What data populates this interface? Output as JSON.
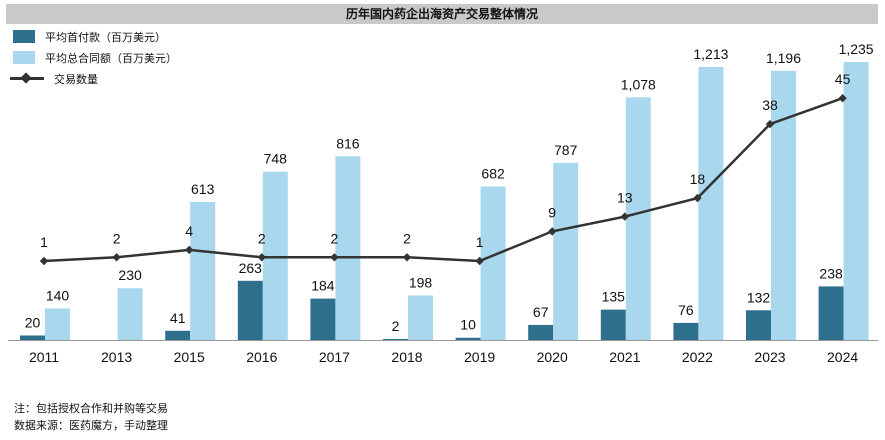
{
  "title": "历年国内药企出海资产交易整体情况",
  "legend": {
    "items": [
      {
        "label": "平均首付款（百万美元）",
        "color": "#2e6f8e",
        "kind": "bar"
      },
      {
        "label": "平均总合同额（百万美元）",
        "color": "#a9d8ee",
        "kind": "bar"
      },
      {
        "label": "交易数量",
        "color": "#333333",
        "kind": "line"
      }
    ]
  },
  "footnote": {
    "note": "注：包括授权合作和并购等交易",
    "source": "数据来源：医药魔方，手动整理"
  },
  "chart_data": {
    "type": "bar",
    "title": "历年国内药企出海资产交易整体情况",
    "categories": [
      "2011",
      "2013",
      "2015",
      "2016",
      "2017",
      "2018",
      "2019",
      "2020",
      "2021",
      "2022",
      "2023",
      "2024"
    ],
    "series": [
      {
        "name": "平均首付款（百万美元）",
        "type": "bar",
        "color": "#2e6f8e",
        "values": [
          20,
          null,
          41,
          263,
          184,
          2,
          10,
          67,
          135,
          76,
          132,
          238
        ],
        "labels": [
          "20",
          "",
          "41",
          "263",
          "184",
          "2",
          "10",
          "67",
          "135",
          "76",
          "132",
          "238"
        ]
      },
      {
        "name": "平均总合同额（百万美元）",
        "type": "bar",
        "color": "#a9d8ee",
        "values": [
          140,
          230,
          613,
          748,
          816,
          198,
          682,
          787,
          1078,
          1213,
          1196,
          1235
        ],
        "labels": [
          "140",
          "230",
          "613",
          "748",
          "816",
          "198",
          "682",
          "787",
          "1,078",
          "1,213",
          "1,196",
          "1,235"
        ]
      },
      {
        "name": "交易数量",
        "type": "line",
        "color": "#333333",
        "values": [
          1,
          2,
          4,
          2,
          2,
          2,
          1,
          9,
          13,
          18,
          38,
          45
        ],
        "labels": [
          "1",
          "2",
          "4",
          "2",
          "2",
          "2",
          "1",
          "9",
          "13",
          "18",
          "38",
          "45"
        ]
      }
    ],
    "grid": false,
    "legend_position": "top-left"
  }
}
